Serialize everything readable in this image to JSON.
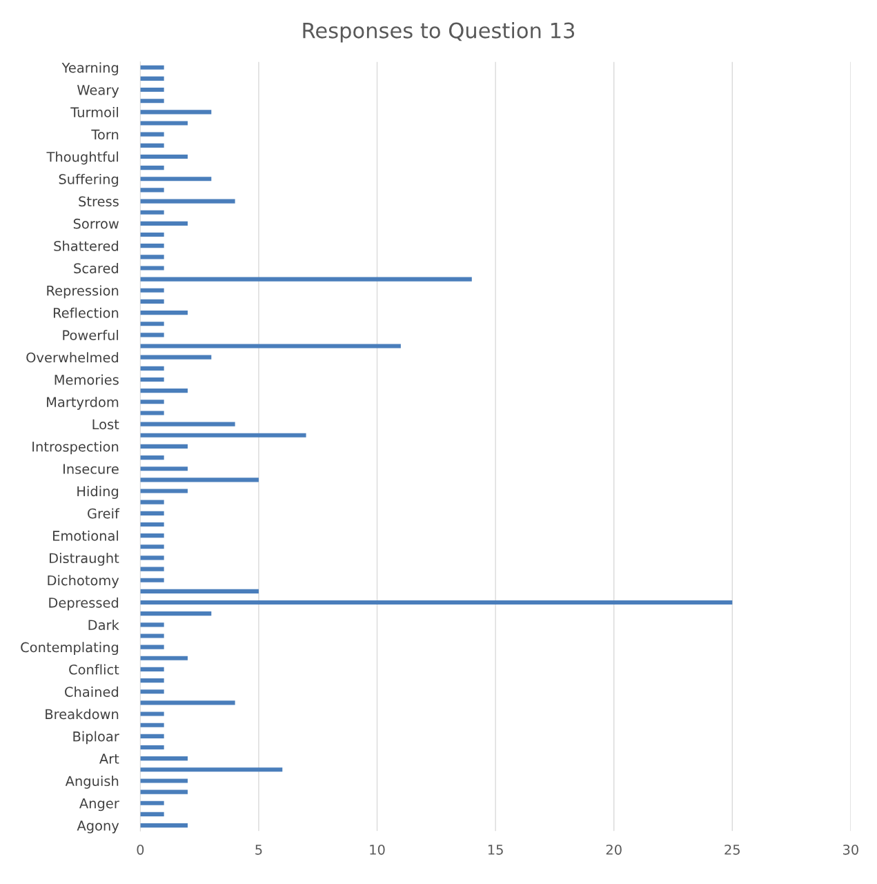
{
  "chart_data": {
    "type": "bar",
    "orientation": "horizontal",
    "title": "Responses to Question 13",
    "categories": [
      "Yearning",
      null,
      "Weary",
      null,
      "Turmoil",
      null,
      "Torn",
      null,
      "Thoughtful",
      null,
      "Suffering",
      null,
      "Stress",
      null,
      "Sorrow",
      null,
      "Shattered",
      null,
      "Scared",
      null,
      "Repression",
      null,
      "Reflection",
      null,
      "Powerful",
      null,
      "Overwhelmed",
      null,
      "Memories",
      null,
      "Martyrdom",
      null,
      "Lost",
      null,
      "Introspection",
      null,
      "Insecure",
      null,
      "Hiding",
      null,
      "Greif",
      null,
      "Emotional",
      null,
      "Distraught",
      null,
      "Dichotomy",
      null,
      "Depressed",
      null,
      "Dark",
      null,
      "Contemplating",
      null,
      "Conflict",
      null,
      "Chained",
      null,
      "Breakdown",
      null,
      "Biploar",
      null,
      "Art",
      null,
      "Anguish",
      null,
      "Anger",
      null,
      "Agony"
    ],
    "values": [
      1,
      1,
      1,
      1,
      3,
      2,
      1,
      1,
      2,
      1,
      3,
      1,
      4,
      1,
      2,
      1,
      1,
      1,
      1,
      14,
      1,
      1,
      2,
      1,
      1,
      11,
      3,
      1,
      1,
      2,
      1,
      1,
      4,
      7,
      2,
      1,
      2,
      5,
      2,
      1,
      1,
      1,
      1,
      1,
      1,
      1,
      1,
      5,
      25,
      3,
      1,
      1,
      1,
      2,
      1,
      1,
      1,
      4,
      1,
      1,
      1,
      1,
      2,
      6,
      2,
      2,
      1,
      1,
      2
    ],
    "color": "#4a7ebb",
    "xlim": [
      0,
      30
    ],
    "xticks": [
      0,
      5,
      10,
      15,
      20,
      25,
      30
    ],
    "grid": "x",
    "legend": false
  }
}
